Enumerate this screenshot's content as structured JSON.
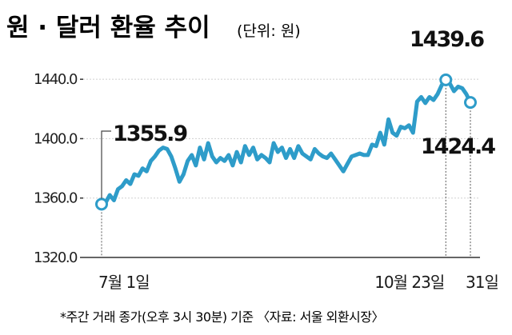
{
  "header": {
    "title": "원 · 달러 환율 추이",
    "unit": "(단위: 원)"
  },
  "footer": {
    "note": "*주간 거래 종가(오후 3시 30분) 기준 〈자료: 서울 외환시장〉"
  },
  "colors": {
    "line": "#2e9cc9",
    "axis": "#333333",
    "grid": "#d0d0d0"
  },
  "chart_data": {
    "type": "line",
    "title": "원 · 달러 환율 추이",
    "unit": "(단위: 원)",
    "xlabel": "",
    "ylabel": "",
    "ylim": [
      1320,
      1460
    ],
    "yticks": [
      1320,
      1360,
      1400,
      1440
    ],
    "ytick_labels": [
      "1320.0",
      "1360.0",
      "1400.0",
      "1440.0"
    ],
    "xtick_labels": [
      {
        "idx": 0,
        "label": "7월 1일"
      },
      {
        "idx": 84,
        "label": "10월 23일"
      },
      {
        "idx": 90,
        "label": "31일"
      }
    ],
    "annotations": [
      {
        "idx": 0,
        "value": 1355.9,
        "label": "1355.9"
      },
      {
        "idx": 84,
        "value": 1439.6,
        "label": "1439.6"
      },
      {
        "idx": 90,
        "value": 1424.4,
        "label": "1424.4"
      }
    ],
    "series": [
      {
        "values": [
          1355.9,
          1357.0,
          1362.0,
          1358.5,
          1366.0,
          1368.0,
          1372.0,
          1369.5,
          1376.0,
          1375.0,
          1380.0,
          1378.0,
          1385.0,
          1388.0,
          1392.0,
          1394.0,
          1393.0,
          1388.0,
          1380.0,
          1371.0,
          1376.0,
          1385.0,
          1389.0,
          1382.0,
          1394.0,
          1386.0,
          1397.0,
          1388.0,
          1384.0,
          1387.0,
          1385.0,
          1389.0,
          1382.0,
          1391.0,
          1384.0,
          1395.0,
          1389.0,
          1394.0,
          1386.0,
          1389.0,
          1387.0,
          1384.0,
          1397.0,
          1391.0,
          1394.0,
          1387.0,
          1393.0,
          1387.0,
          1395.0,
          1390.0,
          1388.0,
          1386.0,
          1393.0,
          1390.0,
          1388.0,
          1387.0,
          1390.0,
          1386.0,
          1382.0,
          1378.0,
          1383.0,
          1388.0,
          1389.0,
          1390.0,
          1389.0,
          1389.0,
          1396.0,
          1395.0,
          1404.0,
          1396.0,
          1413.0,
          1404.0,
          1402.0,
          1408.0,
          1407.0,
          1409.0,
          1404.0,
          1425.0,
          1428.0,
          1424.0,
          1428.0,
          1426.0,
          1430.0,
          1436.0,
          1439.6,
          1437.0,
          1432.0,
          1435.0,
          1434.0,
          1430.0,
          1424.4
        ]
      }
    ]
  }
}
